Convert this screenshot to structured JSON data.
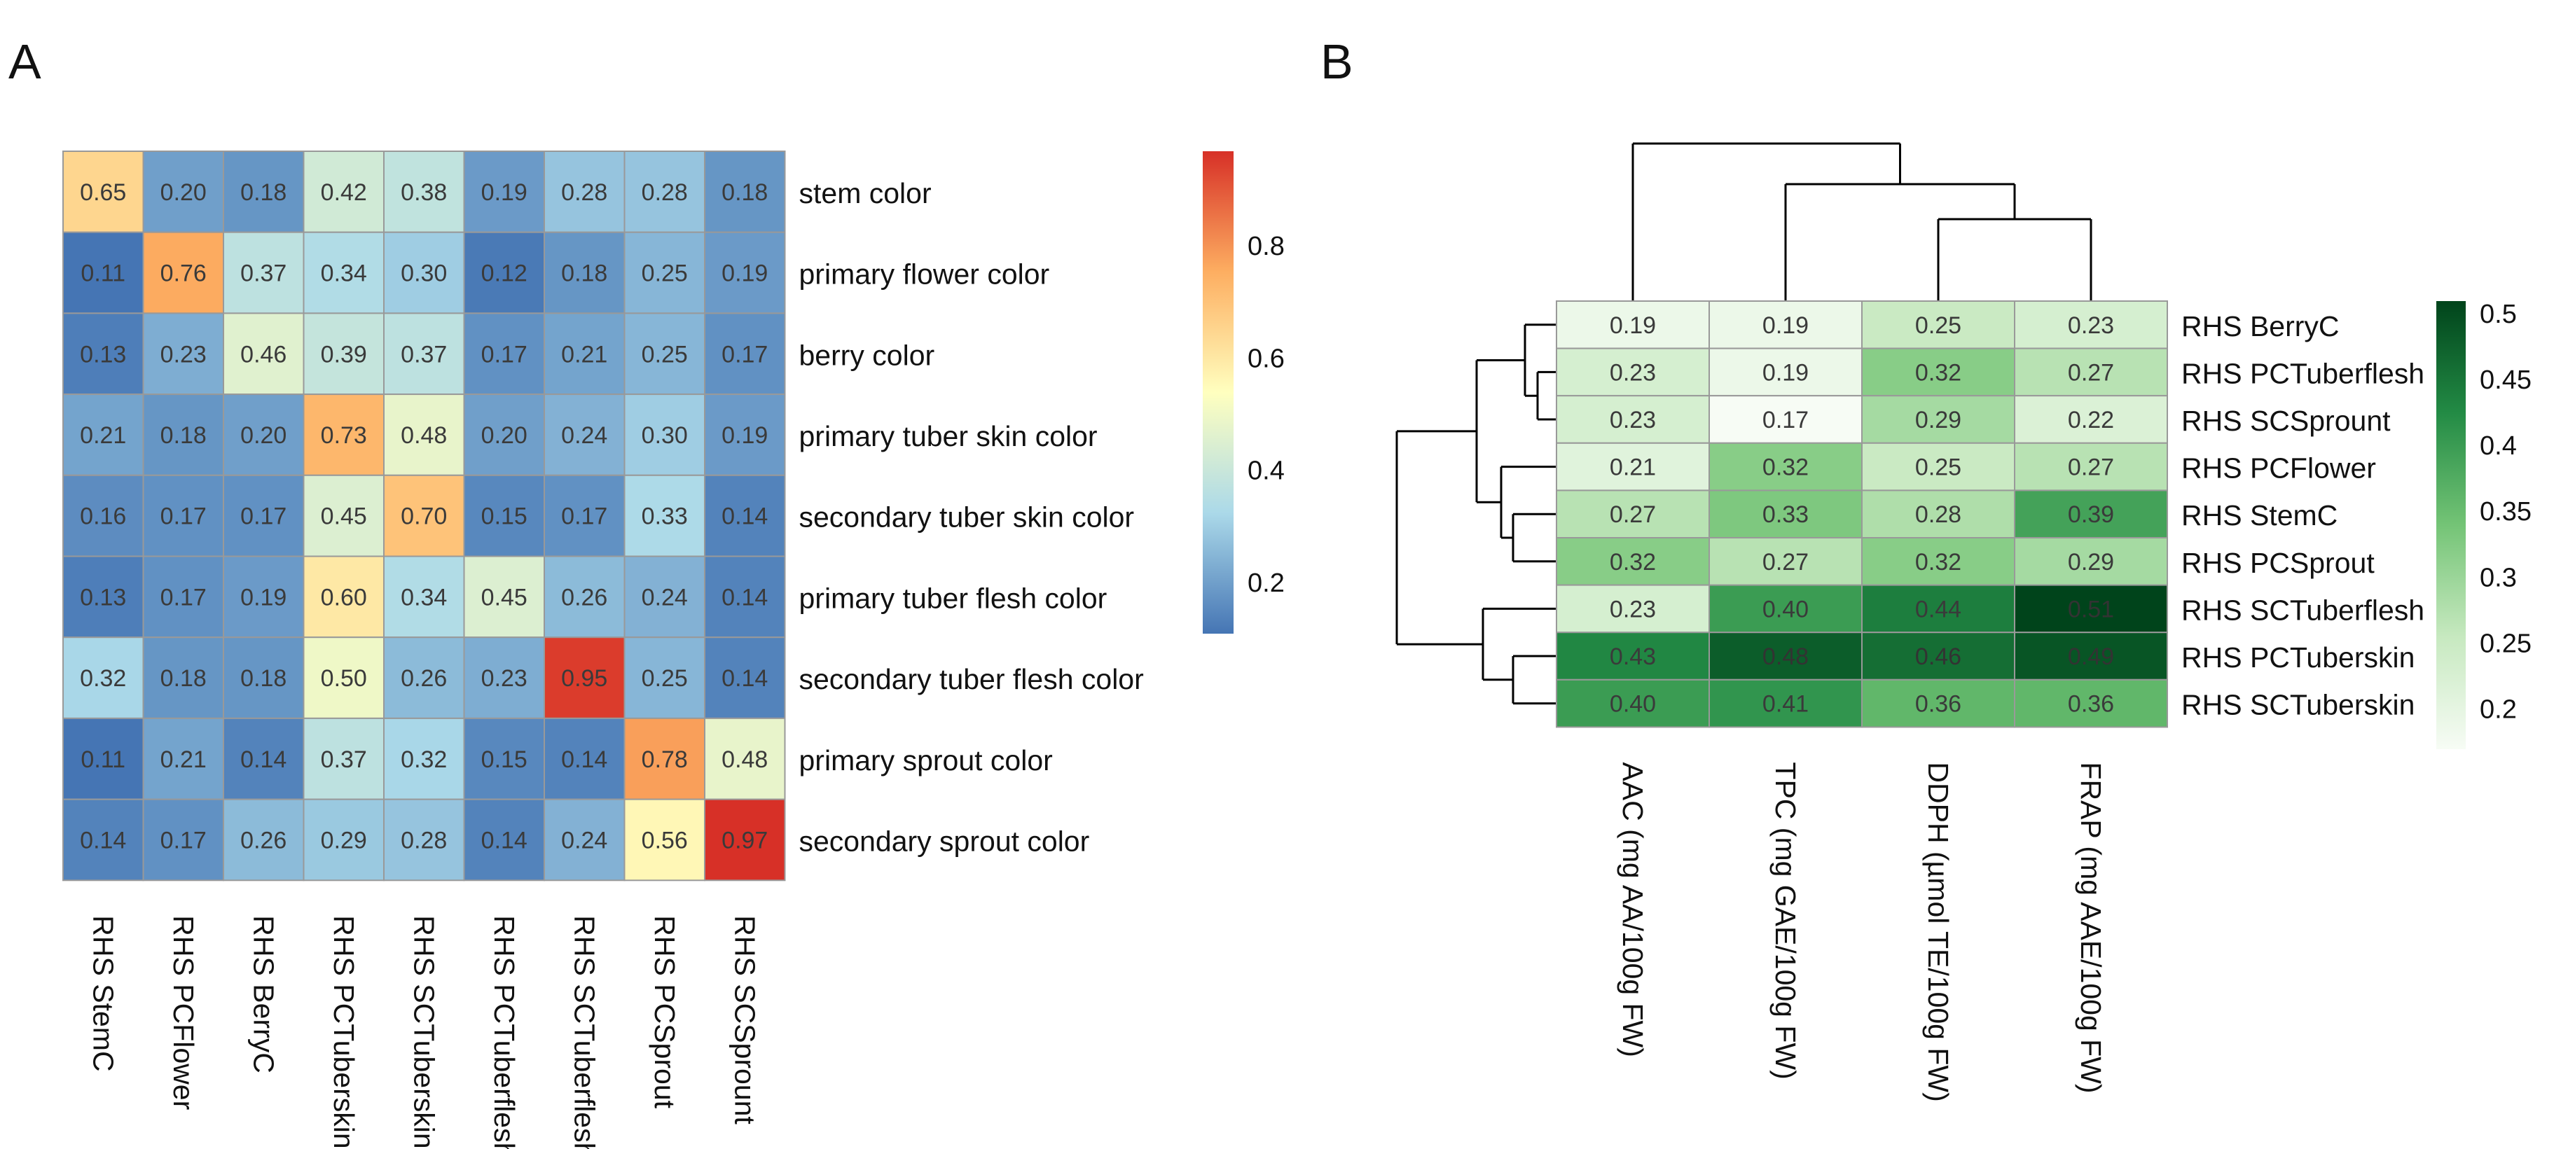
{
  "panels": [
    {
      "label": "A"
    },
    {
      "label": "B"
    }
  ],
  "chart_data": [
    {
      "type": "heatmap",
      "panel": "A",
      "rows": [
        "stem color",
        "primary flower color",
        "berry color",
        "primary tuber skin color",
        "secondary tuber skin color",
        "primary tuber flesh color",
        "secondary tuber flesh color",
        "primary sprout color",
        "secondary sprout color"
      ],
      "columns": [
        "RHS StemC",
        "RHS PCFlower",
        "RHS BerryC",
        "RHS PCTuberskin",
        "RHS SCTuberskin",
        "RHS PCTuberflesh",
        "RHS SCTuberflesh",
        "RHS PCSprout",
        "RHS SCSprount"
      ],
      "values": [
        [
          0.65,
          0.2,
          0.18,
          0.42,
          0.38,
          0.19,
          0.28,
          0.28,
          0.18
        ],
        [
          0.11,
          0.76,
          0.37,
          0.34,
          0.3,
          0.12,
          0.18,
          0.25,
          0.19
        ],
        [
          0.13,
          0.23,
          0.46,
          0.39,
          0.37,
          0.17,
          0.21,
          0.25,
          0.17
        ],
        [
          0.21,
          0.18,
          0.2,
          0.73,
          0.48,
          0.2,
          0.24,
          0.3,
          0.19
        ],
        [
          0.16,
          0.17,
          0.17,
          0.45,
          0.7,
          0.15,
          0.17,
          0.33,
          0.14
        ],
        [
          0.13,
          0.17,
          0.19,
          0.6,
          0.34,
          0.45,
          0.26,
          0.24,
          0.14
        ],
        [
          0.32,
          0.18,
          0.18,
          0.5,
          0.26,
          0.23,
          0.95,
          0.25,
          0.14
        ],
        [
          0.11,
          0.21,
          0.14,
          0.37,
          0.32,
          0.15,
          0.14,
          0.78,
          0.48
        ],
        [
          0.14,
          0.17,
          0.26,
          0.29,
          0.28,
          0.14,
          0.24,
          0.56,
          0.97
        ]
      ],
      "colorscale": {
        "colors": [
          "#4575b4",
          "#abd9e9",
          "#ffffbf",
          "#fdae61",
          "#d73027"
        ],
        "range": [
          0.11,
          0.97
        ],
        "ticks": [
          0.2,
          0.4,
          0.6,
          0.8
        ]
      },
      "legend_position": "right"
    },
    {
      "type": "heatmap",
      "panel": "B",
      "rows": [
        "RHS BerryC",
        "RHS PCTuberflesh",
        "RHS SCSprount",
        "RHS PCFlower",
        "RHS StemC",
        "RHS PCSprout",
        "RHS SCTuberflesh",
        "RHS PCTuberskin",
        "RHS SCTuberskin"
      ],
      "columns": [
        "AAC (mg AA/100g FW)",
        "TPC (mg GAE/100g FW)",
        "DDPH (µmol TE/100g FW)",
        "FRAP (mg AAE/100g FW)"
      ],
      "values": [
        [
          0.19,
          0.19,
          0.25,
          0.23
        ],
        [
          0.23,
          0.19,
          0.32,
          0.27
        ],
        [
          0.23,
          0.17,
          0.29,
          0.22
        ],
        [
          0.21,
          0.32,
          0.25,
          0.27
        ],
        [
          0.27,
          0.33,
          0.28,
          0.39
        ],
        [
          0.32,
          0.27,
          0.32,
          0.29
        ],
        [
          0.23,
          0.4,
          0.44,
          0.51
        ],
        [
          0.43,
          0.48,
          0.46,
          0.49
        ],
        [
          0.4,
          0.41,
          0.36,
          0.36
        ]
      ],
      "colorscale": {
        "colors": [
          "#f7fcf5",
          "#c7e9c0",
          "#74c476",
          "#238b45",
          "#00441b"
        ],
        "range": [
          0.17,
          0.51
        ],
        "ticks": [
          0.2,
          0.25,
          0.3,
          0.35,
          0.4,
          0.45,
          0.5
        ]
      },
      "dendrograms": [
        "column",
        "row"
      ],
      "legend_position": "right"
    }
  ]
}
